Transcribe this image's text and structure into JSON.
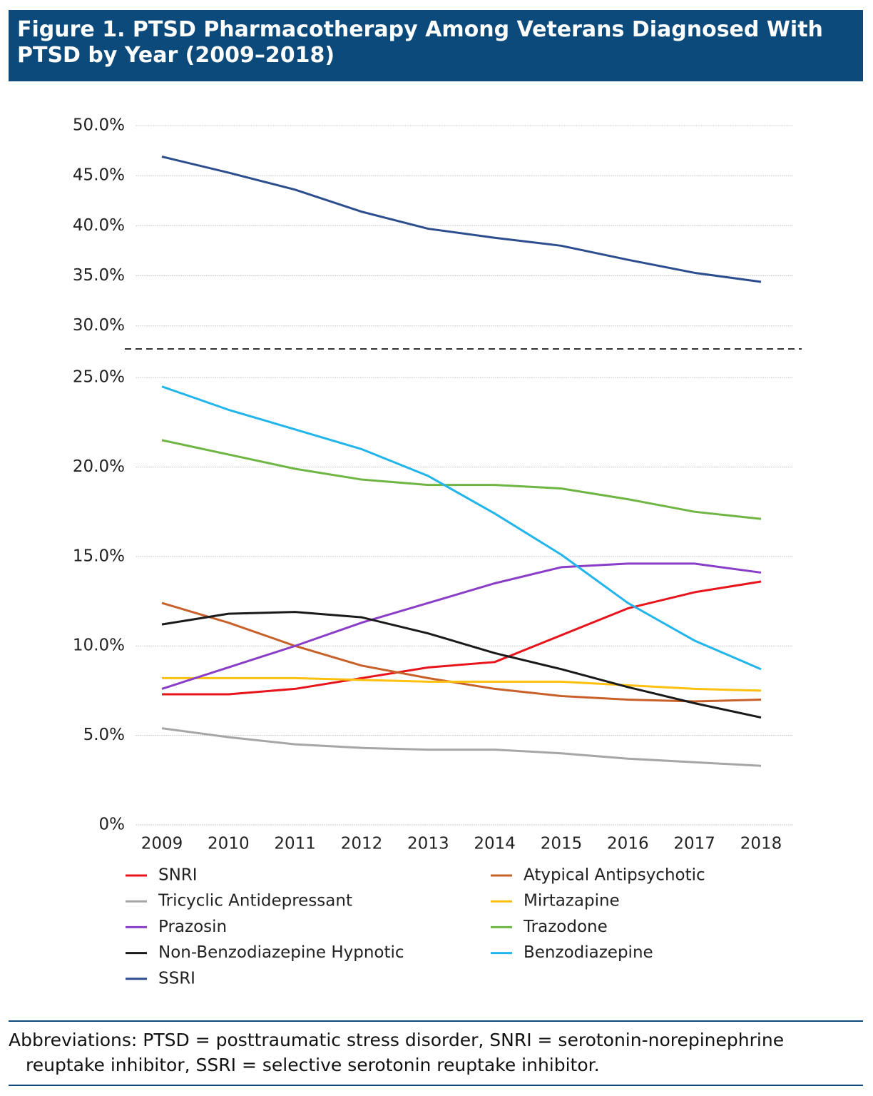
{
  "chart_data": {
    "type": "line",
    "title": "Figure 1. PTSD Pharmacotherapy Among Veterans Diagnosed With PTSD by Year (2009–2018)",
    "footnote": "Abbreviations: PTSD = posttraumatic stress disorder, SNRI = serotonin-norepinephrine reuptake inhibitor, SSRI = selective serotonin reuptake inhibitor.",
    "categories": [
      "2009",
      "2010",
      "2011",
      "2012",
      "2013",
      "2014",
      "2015",
      "2016",
      "2017",
      "2018"
    ],
    "ylim": [
      0,
      50
    ],
    "ybreak": [
      26.6,
      27.7
    ],
    "yticks": [
      {
        "value": 0,
        "label": "0%"
      },
      {
        "value": 5,
        "label": "5.0%"
      },
      {
        "value": 10,
        "label": "10.0%"
      },
      {
        "value": 15,
        "label": "15.0%"
      },
      {
        "value": 20,
        "label": "20.0%"
      },
      {
        "value": 25,
        "label": "25.0%"
      },
      {
        "value": 30,
        "label": "30.0%"
      },
      {
        "value": 35,
        "label": "35.0%"
      },
      {
        "value": 40,
        "label": "40.0%"
      },
      {
        "value": 45,
        "label": "45.0%"
      },
      {
        "value": 50,
        "label": "50.0%"
      }
    ],
    "grid": true,
    "legend": "bottom",
    "series": [
      {
        "name": "SNRI",
        "color": "#e8141b",
        "values": [
          7.3,
          7.3,
          7.6,
          8.2,
          8.8,
          9.1,
          10.6,
          12.1,
          13.0,
          13.6
        ]
      },
      {
        "name": "Atypical Antipsychotic",
        "color": "#c8602a",
        "values": [
          12.4,
          11.3,
          10.0,
          8.9,
          8.2,
          7.6,
          7.2,
          7.0,
          6.9,
          7.0
        ]
      },
      {
        "name": "Tricyclic Antidepressant",
        "color": "#a6a6a6",
        "values": [
          5.4,
          4.9,
          4.5,
          4.3,
          4.2,
          4.2,
          4.0,
          3.7,
          3.5,
          3.3
        ]
      },
      {
        "name": "Mirtazapine",
        "color": "#fdc010",
        "values": [
          8.2,
          8.2,
          8.2,
          8.1,
          8.0,
          8.0,
          8.0,
          7.8,
          7.6,
          7.5
        ]
      },
      {
        "name": "Prazosin",
        "color": "#8a3ec8",
        "values": [
          7.6,
          8.8,
          10.0,
          11.3,
          12.4,
          13.5,
          14.4,
          14.6,
          14.6,
          14.1
        ]
      },
      {
        "name": "Trazodone",
        "color": "#6fb544",
        "values": [
          21.5,
          20.7,
          19.9,
          19.3,
          19.0,
          19.0,
          18.8,
          18.2,
          17.5,
          17.1
        ]
      },
      {
        "name": "Non-Benzodiazepine Hypnotic",
        "color": "#1a1a1a",
        "values": [
          11.2,
          11.8,
          11.9,
          11.6,
          10.7,
          9.6,
          8.7,
          7.7,
          6.8,
          6.0
        ]
      },
      {
        "name": "Benzodiazepine",
        "color": "#21b5ec",
        "values": [
          24.5,
          23.2,
          22.1,
          21.0,
          19.5,
          17.4,
          15.1,
          12.4,
          10.3,
          8.7
        ]
      },
      {
        "name": "SSRI",
        "color": "#2c4e8e",
        "values": [
          46.9,
          45.3,
          43.6,
          41.4,
          39.7,
          38.8,
          38.0,
          36.6,
          35.3,
          34.4
        ]
      }
    ]
  }
}
